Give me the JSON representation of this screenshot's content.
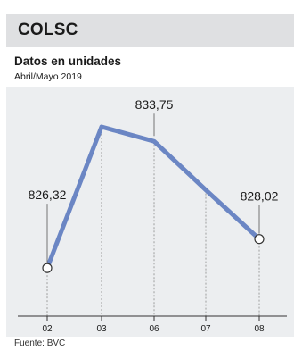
{
  "header": {
    "title": "COLSC",
    "subtitle": "Datos en unidades",
    "period": "Abril/Mayo 2019"
  },
  "footer": {
    "source": "Fuente: BVC"
  },
  "colors": {
    "line": "#6b86c4",
    "title_bar": "#dfe0e2",
    "plot_background": "#eceef0"
  },
  "chart_data": {
    "type": "line",
    "title": "COLSC",
    "subtitle": "Datos en unidades",
    "categories": [
      "02",
      "03",
      "06",
      "07",
      "08"
    ],
    "series": [
      {
        "values": [
          826.32,
          834.6,
          833.75,
          830.9,
          828.02
        ]
      }
    ],
    "data_labels": [
      {
        "index": 0,
        "text": "826,32"
      },
      {
        "index": 2,
        "text": "833,75"
      },
      {
        "index": 4,
        "text": "828,02"
      }
    ],
    "marked_points": [
      0,
      4
    ],
    "ylim": [
      823.5,
      836.8
    ],
    "grid": "vertical-dashed",
    "legend": "none"
  }
}
